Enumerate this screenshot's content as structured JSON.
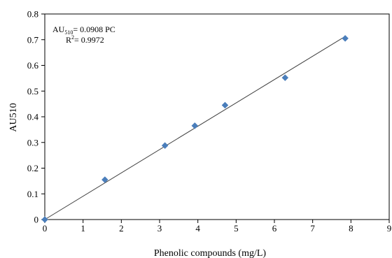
{
  "chart_data": {
    "type": "scatter",
    "xlabel": "Phenolic compounds (mg/L)",
    "ylabel": "AU510",
    "xlim": [
      0,
      9
    ],
    "ylim": [
      0,
      0.8
    ],
    "xticks": [
      0,
      1,
      2,
      3,
      4,
      5,
      6,
      7,
      8,
      9
    ],
    "yticks": [
      0,
      0.1,
      0.2,
      0.3,
      0.4,
      0.5,
      0.6,
      0.7,
      0.8
    ],
    "xtick_labels": [
      "0",
      "1",
      "2",
      "3",
      "4",
      "5",
      "6",
      "7",
      "8",
      "9"
    ],
    "ytick_labels": [
      "0",
      "0.1",
      "0.2",
      "0.3",
      "0.4",
      "0.5",
      "0.6",
      "0.7",
      "0.8"
    ],
    "grid": false,
    "marker": "diamond",
    "marker_color": "#4a7ebb",
    "trendline_color": "#404040",
    "series": [
      {
        "x": [
          0,
          1.57,
          3.14,
          3.92,
          4.71,
          6.28,
          7.85
        ],
        "y": [
          0,
          0.155,
          0.288,
          0.365,
          0.445,
          0.552,
          0.705
        ]
      }
    ],
    "trendline": {
      "slope": 0.0908,
      "intercept": 0,
      "x_range": [
        0,
        7.85
      ]
    },
    "annotation": {
      "eq_prefix": "AU",
      "eq_sub": "510",
      "eq_rest": "= 0.0908 PC",
      "r2_prefix": "R",
      "r2_sup": "2",
      "r2_rest": "= 0.9972"
    }
  }
}
